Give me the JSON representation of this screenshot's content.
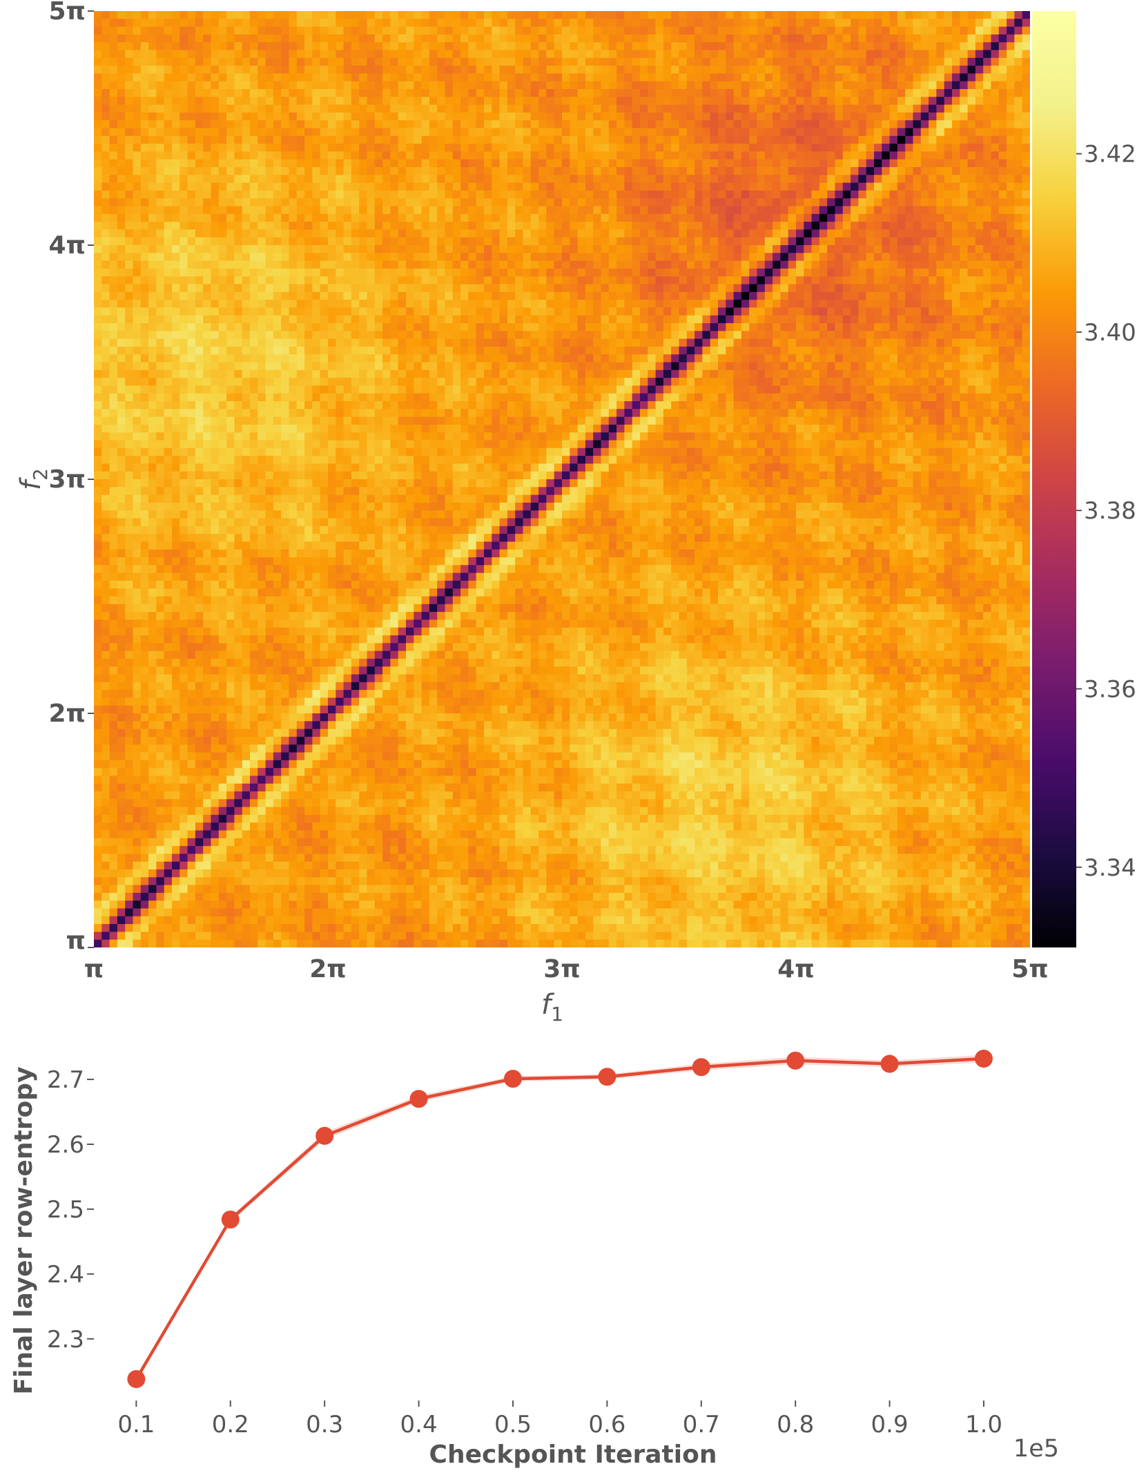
{
  "chart_data": [
    {
      "type": "heatmap",
      "xlabel_main": "f",
      "xlabel_sub": "1",
      "ylabel_main": "f",
      "ylabel_sub": "2",
      "x_ticks": [
        "π",
        "2π",
        "3π",
        "4π",
        "5π"
      ],
      "y_ticks": [
        "π",
        "2π",
        "3π",
        "4π",
        "5π"
      ],
      "x_range": [
        3.1416,
        15.708
      ],
      "y_range": [
        3.1416,
        15.708
      ],
      "colormap": "inferno",
      "colorbar": {
        "range": [
          3.331,
          3.436
        ],
        "ticks": [
          3.34,
          3.36,
          3.38,
          3.4,
          3.42
        ],
        "tick_labels": [
          "3.34",
          "3.36",
          "3.38",
          "3.40",
          "3.42"
        ]
      },
      "features": {
        "diagonal": "dark narrow band along f1 = f2 with bright side fringes",
        "dark_region": "upper-right, around f1 ≈ 4π, f2 ≈ 4π",
        "bright_regions": [
          "upper-left near f1 ≈ 1.5π, f2 ≈ 3.5π",
          "lower-right near f1 ≈ 3.7π, f2 ≈ 1.6π"
        ]
      }
    },
    {
      "type": "line",
      "xlabel": "Checkpoint Iteration",
      "ylabel": "Final layer row-entropy",
      "x_offset_label": "1e5",
      "x": [
        0.1,
        0.2,
        0.3,
        0.4,
        0.5,
        0.6,
        0.7,
        0.8,
        0.9,
        1.0
      ],
      "x_tick_labels": [
        "0.1",
        "0.2",
        "0.3",
        "0.4",
        "0.5",
        "0.6",
        "0.7",
        "0.8",
        "0.9",
        "1.0"
      ],
      "series": [
        {
          "values": [
            2.238,
            2.484,
            2.613,
            2.67,
            2.701,
            2.704,
            2.719,
            2.729,
            2.724,
            2.732
          ],
          "band": [
            0.003,
            0.004,
            0.006,
            0.005,
            0.004,
            0.004,
            0.005,
            0.006,
            0.005,
            0.006
          ],
          "color": "#e24a33"
        }
      ],
      "y_ticks": [
        2.3,
        2.4,
        2.5,
        2.6,
        2.7
      ],
      "y_tick_labels": [
        "2.3",
        "2.4",
        "2.5",
        "2.6",
        "2.7"
      ],
      "xlim": [
        0.055,
        1.055
      ],
      "ylim": [
        2.205,
        2.765
      ],
      "grid": false
    }
  ]
}
